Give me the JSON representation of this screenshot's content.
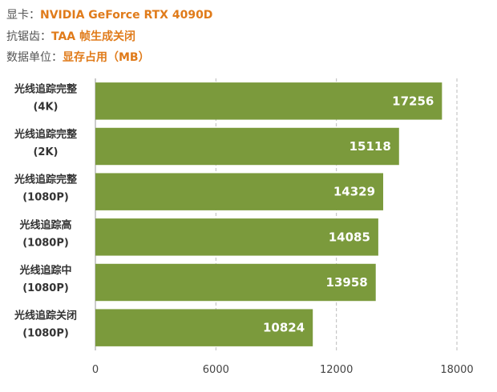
{
  "header": {
    "gpu_key": "显卡：",
    "gpu_value": "NVIDIA GeForce RTX 4090D",
    "aa_key": "抗锯齿：",
    "aa_value": "TAA  帧生成关闭",
    "unit_key": "数据单位：",
    "unit_value": "显存占用（MB）"
  },
  "chart_data": {
    "type": "bar",
    "orientation": "horizontal",
    "categories": [
      [
        "光线追踪完整",
        "(4K)"
      ],
      [
        "光线追踪完整",
        "(2K)"
      ],
      [
        "光线追踪完整",
        "(1080P)"
      ],
      [
        "光线追踪高",
        "(1080P)"
      ],
      [
        "光线追踪中",
        "(1080P)"
      ],
      [
        "光线追踪关闭",
        "(1080P)"
      ]
    ],
    "values": [
      17256,
      15118,
      14329,
      14085,
      13958,
      10824
    ],
    "xlim": [
      0,
      18000
    ],
    "xticks": [
      0,
      6000,
      12000,
      18000
    ],
    "grid": true,
    "bar_color": "#7b9a3c",
    "title": "",
    "xlabel": "",
    "ylabel": ""
  }
}
